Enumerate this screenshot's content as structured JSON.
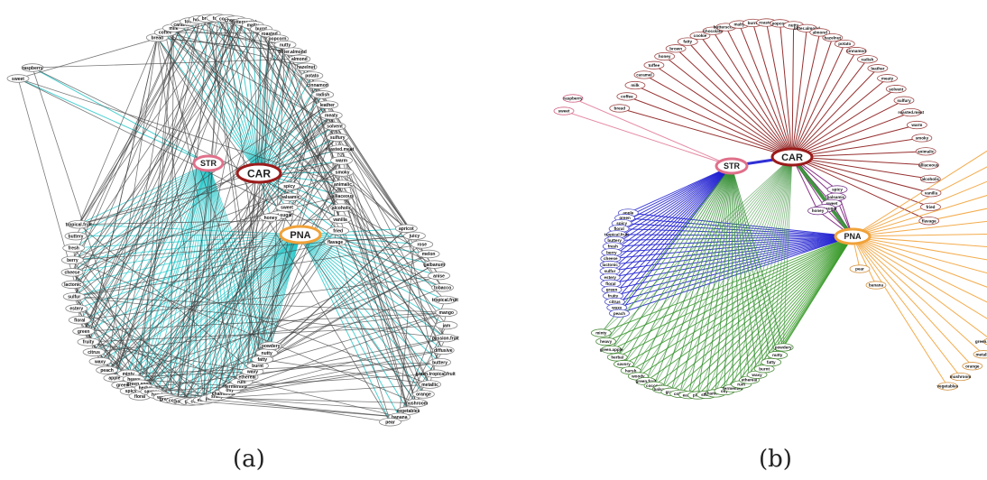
{
  "captions": {
    "a": "(a)",
    "b": "(b)"
  },
  "hubs": [
    {
      "id": "CAR",
      "label": "CAR",
      "color": "#9b1c1c"
    },
    {
      "id": "STR",
      "label": "STR",
      "color": "#e0708a"
    },
    {
      "id": "PNA",
      "label": "PNA",
      "color": "#f0a23a"
    }
  ],
  "descriptors": {
    "car_only": [
      "bread",
      "coffee",
      "milk",
      "caramel",
      "toffee",
      "honey",
      "brown",
      "fatty",
      "cookie",
      "chocolate",
      "butterscotch",
      "malty",
      "burnt",
      "roasted",
      "popcorn",
      "nutty",
      "bitter.almond",
      "almond",
      "hazelnut",
      "potato",
      "cinnamon",
      "radish",
      "leather",
      "meaty",
      "solvent",
      "sulfury",
      "roasted.meat",
      "warm",
      "smoky",
      "animalic",
      "alliaceous",
      "alcoholic",
      "vanilla",
      "fried",
      "flavage"
    ],
    "str_only": [
      "raspberry",
      "sweet"
    ],
    "car_str": [
      "apple",
      "green",
      "spicy",
      "floral"
    ],
    "car_pna": [
      "spicy",
      "balsamic",
      "sweet",
      "burnt.sugar",
      "honey"
    ],
    "str_pna": [
      "tropical.fruit",
      "buttery",
      "fresh",
      "berry",
      "cheese",
      "lactonic",
      "sulfur",
      "estery",
      "floral",
      "green",
      "fruity",
      "citrus",
      "waxy",
      "peach"
    ],
    "all": [
      "minty",
      "heavy",
      "green.apple",
      "herbal",
      "savory",
      "harsh",
      "woody",
      "green.fruit",
      "coconut",
      "balsamic",
      "grape",
      "coffee",
      "earthy",
      "plum",
      "sharp",
      "chamomile",
      "oily",
      "fermented",
      "rum",
      "ethereal",
      "waxy",
      "burnt",
      "fatty",
      "nutty",
      "powdery"
    ],
    "pna_only": [
      "apricot",
      "juicy",
      "rose",
      "melon",
      "galbanum",
      "anise",
      "tobacco",
      "tropical.fruit",
      "mango",
      "jam",
      "passion.fruit",
      "diffusive",
      "buttery",
      "green.tropical.fruit",
      "metallic",
      "orange",
      "mushroom",
      "vegetables",
      "banana",
      "pear"
    ]
  },
  "panels": [
    {
      "id": "a",
      "layout": "combined",
      "edge_colors": [
        "#404040",
        "#22c5c8"
      ]
    },
    {
      "id": "b",
      "layout": "split",
      "edge_colors": {
        "car": "#8b1a1a",
        "str": "#e27d9a",
        "pna": "#f2a33a",
        "car_str": "#1a1ad0",
        "car_pna": "#2e8b2e",
        "str_pna": "#1a1ad0",
        "all": "#3a9a2a"
      }
    }
  ]
}
